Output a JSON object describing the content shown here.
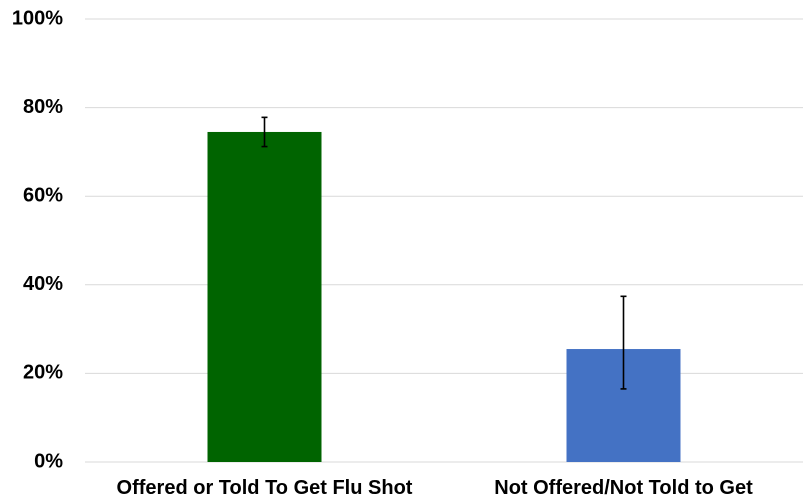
{
  "chart_data": {
    "type": "bar",
    "title": "",
    "xlabel": "",
    "ylabel": "",
    "categories": [
      "Offered or Told To Get Flu Shot",
      "Not Offered/Not Told to Get"
    ],
    "values": [
      74.5,
      25.5
    ],
    "error_bars": [
      {
        "low": 71.2,
        "high": 77.8
      },
      {
        "low": 16.5,
        "high": 37.4
      }
    ],
    "bar_colors": [
      "#006400",
      "#4472C4"
    ],
    "ylim": [
      0,
      100
    ],
    "yticks": [
      0,
      20,
      40,
      60,
      80,
      100
    ],
    "ytick_labels": [
      "0%",
      "20%",
      "40%",
      "60%",
      "80%",
      "100%"
    ],
    "grid": true,
    "legend": false
  }
}
